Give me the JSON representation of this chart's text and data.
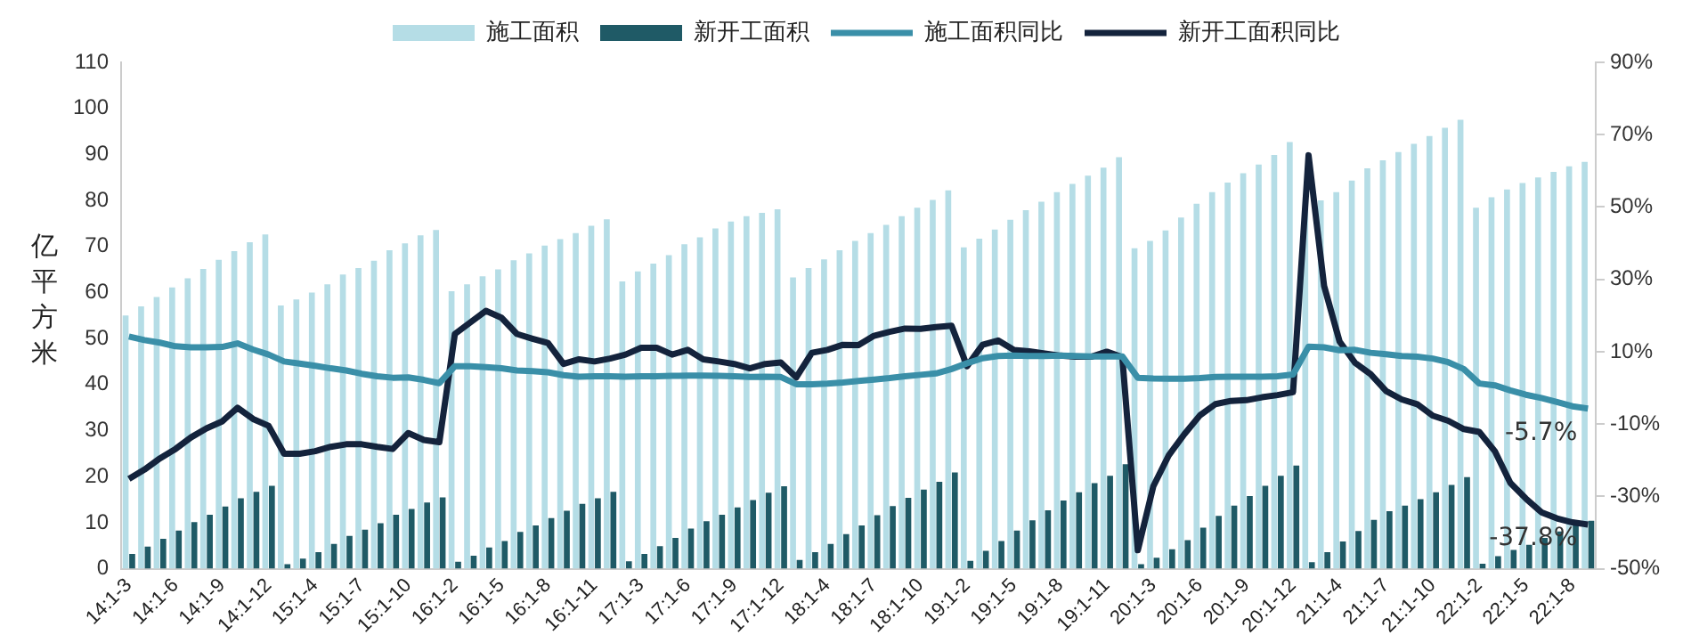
{
  "chart_data": {
    "type": "bar",
    "ylabel": "亿平方米",
    "categories": [
      "14:1-3",
      null,
      null,
      "14:1-6",
      null,
      null,
      "14:1-9",
      null,
      null,
      "14:1-12",
      null,
      null,
      "15:1-4",
      null,
      null,
      "15:1-7",
      null,
      null,
      "15:1-10",
      null,
      null,
      "16:1-2",
      null,
      null,
      "16:1-5",
      null,
      null,
      "16:1-8",
      null,
      null,
      "16:1-11",
      null,
      null,
      "17:1-3",
      null,
      null,
      "17:1-6",
      null,
      null,
      "17:1-9",
      null,
      null,
      "17:1-12",
      null,
      null,
      "18:1-4",
      null,
      null,
      "18:1-7",
      null,
      null,
      "18:1-10",
      null,
      null,
      "19:1-2",
      null,
      null,
      "19:1-5",
      null,
      null,
      "19:1-8",
      null,
      null,
      "19:1-11",
      null,
      null,
      "20:1-3",
      null,
      null,
      "20:1-6",
      null,
      null,
      "20:1-9",
      null,
      null,
      "20:1-12",
      null,
      null,
      "21:1-4",
      null,
      null,
      "21:1-7",
      null,
      null,
      "21:1-10",
      null,
      null,
      "22:1-2",
      null,
      null,
      "22:1-5",
      null,
      null,
      "22:1-8",
      null
    ],
    "series": [
      {
        "name": "施工面积",
        "color": "#b5dde6",
        "values": [
          55.0,
          57.0,
          59.0,
          61.1,
          63.1,
          65.1,
          67.1,
          69.0,
          70.9,
          72.6,
          57.2,
          58.5,
          60.0,
          61.8,
          63.9,
          65.3,
          66.9,
          69.2,
          70.7,
          72.4,
          73.6,
          60.3,
          61.8,
          63.5,
          65.0,
          67.0,
          68.5,
          70.2,
          71.6,
          72.9,
          74.5,
          75.9,
          62.4,
          64.6,
          66.3,
          68.1,
          70.5,
          72.0,
          73.9,
          75.4,
          76.6,
          77.3,
          78.1,
          63.3,
          65.3,
          67.2,
          69.2,
          71.2,
          72.9,
          74.7,
          76.6,
          78.4,
          80.1,
          82.2,
          69.8,
          71.7,
          73.7,
          75.8,
          77.9,
          79.7,
          81.8,
          83.6,
          85.4,
          87.1,
          89.4,
          69.6,
          71.2,
          73.5,
          76.3,
          79.3,
          81.8,
          83.9,
          85.9,
          87.8,
          89.9,
          92.7,
          78.3,
          80.0,
          81.8,
          84.3,
          87.0,
          88.7,
          90.5,
          92.3,
          94.0,
          95.8,
          97.5,
          78.4,
          80.7,
          82.4,
          83.8,
          85.0,
          86.2,
          87.4,
          88.4
        ]
      },
      {
        "name": "新开工面积",
        "color": "#1f5a66",
        "values": [
          3.2,
          4.8,
          6.5,
          8.3,
          10.1,
          11.7,
          13.5,
          15.3,
          16.7,
          18.0,
          1.0,
          2.2,
          3.6,
          5.4,
          7.1,
          8.5,
          9.9,
          11.7,
          13.0,
          14.4,
          15.5,
          1.5,
          2.8,
          4.6,
          6.0,
          8.0,
          9.4,
          11.0,
          12.6,
          14.1,
          15.3,
          16.7,
          1.6,
          3.2,
          4.9,
          6.7,
          8.7,
          10.3,
          11.7,
          13.3,
          14.9,
          16.5,
          17.9,
          1.9,
          3.6,
          5.4,
          7.5,
          9.4,
          11.6,
          13.6,
          15.4,
          17.2,
          18.9,
          20.9,
          1.7,
          3.9,
          6.0,
          8.3,
          10.5,
          12.7,
          14.8,
          16.6,
          18.6,
          20.2,
          22.7,
          1.0,
          2.4,
          4.2,
          6.2,
          8.9,
          11.5,
          13.7,
          15.8,
          18.0,
          20.2,
          22.4,
          1.4,
          3.6,
          5.9,
          8.2,
          10.6,
          12.5,
          13.7,
          15.1,
          16.6,
          18.2,
          19.9,
          1.1,
          2.7,
          4.1,
          5.2,
          6.7,
          8.1,
          9.4,
          10.4
        ]
      },
      {
        "name": "施工面积同比",
        "type": "line",
        "axis": "y2",
        "color": "#3a8fa8",
        "values": [
          14.2,
          13.2,
          12.5,
          11.5,
          11.2,
          11.2,
          11.3,
          12.3,
          10.6,
          9.2,
          7.3,
          6.7,
          6.1,
          5.4,
          4.8,
          3.9,
          3.2,
          2.8,
          2.9,
          2.2,
          1.3,
          6.0,
          6.0,
          5.7,
          5.4,
          4.8,
          4.6,
          4.3,
          3.5,
          3.1,
          3.2,
          3.2,
          3.1,
          3.2,
          3.2,
          3.3,
          3.4,
          3.4,
          3.3,
          3.2,
          3.0,
          3.1,
          3.0,
          1.0,
          1.0,
          1.2,
          1.5,
          1.9,
          2.3,
          2.7,
          3.2,
          3.6,
          4.0,
          5.2,
          6.8,
          8.2,
          8.8,
          8.9,
          8.8,
          8.8,
          8.9,
          8.8,
          8.7,
          8.7,
          8.7,
          2.8,
          2.6,
          2.5,
          2.5,
          2.7,
          3.0,
          3.1,
          3.1,
          3.1,
          3.2,
          3.7,
          11.4,
          11.2,
          10.4,
          10.5,
          9.7,
          9.3,
          8.8,
          8.6,
          8.1,
          7.1,
          5.2,
          1.2,
          0.7,
          -0.7,
          -1.9,
          -2.8,
          -3.9,
          -5.1,
          -5.7
        ],
        "value_labels": [
          null,
          null,
          null,
          null,
          null,
          null,
          null,
          null,
          null,
          null,
          null,
          null,
          null,
          null,
          null,
          null,
          null,
          null,
          null,
          null,
          null,
          null,
          null,
          null,
          null,
          null,
          null,
          null,
          null,
          null,
          null,
          null,
          null,
          null,
          null,
          null,
          null,
          null,
          null,
          null,
          null,
          null,
          null,
          null,
          null,
          null,
          null,
          null,
          null,
          null,
          null,
          null,
          null,
          null,
          null,
          null,
          null,
          null,
          null,
          null,
          null,
          null,
          null,
          null,
          null,
          null,
          null,
          null,
          null,
          null,
          null,
          null,
          null,
          null,
          null,
          null,
          null,
          null,
          null,
          null,
          null,
          null,
          null,
          null,
          null,
          null,
          null,
          null,
          null,
          null,
          null,
          null,
          null,
          null,
          "-5.7%"
        ]
      },
      {
        "name": "新开工面积同比",
        "type": "line",
        "axis": "y2",
        "color": "#14233c",
        "values": [
          -25.2,
          -22.6,
          -19.5,
          -16.9,
          -13.7,
          -11.2,
          -9.3,
          -5.5,
          -8.6,
          -10.5,
          -18.2,
          -18.2,
          -17.5,
          -16.3,
          -15.6,
          -15.6,
          -16.3,
          -16.9,
          -12.5,
          -14.4,
          -15.0,
          14.9,
          18.1,
          21.3,
          19.4,
          14.9,
          13.6,
          12.4,
          6.6,
          7.9,
          7.3,
          8.1,
          9.2,
          11.1,
          11.1,
          9.2,
          10.5,
          7.9,
          7.3,
          6.6,
          5.4,
          6.6,
          7.0,
          2.9,
          9.7,
          10.5,
          11.9,
          11.8,
          14.4,
          15.5,
          16.4,
          16.3,
          16.8,
          17.2,
          6.0,
          11.9,
          13.1,
          10.5,
          10.1,
          9.5,
          8.9,
          8.6,
          8.6,
          10.0,
          8.5,
          -44.9,
          -27.2,
          -18.6,
          -12.8,
          -7.6,
          -4.5,
          -3.6,
          -3.4,
          -2.6,
          -2.0,
          -1.2,
          64.3,
          28.2,
          12.8,
          6.9,
          3.8,
          -0.9,
          -3.2,
          -4.5,
          -7.7,
          -9.1,
          -11.4,
          -12.2,
          -17.5,
          -26.3,
          -30.6,
          -34.4,
          -36.1,
          -37.2,
          -37.8
        ],
        "value_labels": [
          null,
          null,
          null,
          null,
          null,
          null,
          null,
          null,
          null,
          null,
          null,
          null,
          null,
          null,
          null,
          null,
          null,
          null,
          null,
          null,
          null,
          null,
          null,
          null,
          null,
          null,
          null,
          null,
          null,
          null,
          null,
          null,
          null,
          null,
          null,
          null,
          null,
          null,
          null,
          null,
          null,
          null,
          null,
          null,
          null,
          null,
          null,
          null,
          null,
          null,
          null,
          null,
          null,
          null,
          null,
          null,
          null,
          null,
          null,
          null,
          null,
          null,
          null,
          null,
          null,
          null,
          null,
          null,
          null,
          null,
          null,
          null,
          null,
          null,
          null,
          null,
          null,
          null,
          null,
          null,
          null,
          null,
          null,
          null,
          null,
          null,
          null,
          null,
          null,
          null,
          null,
          null,
          null,
          null,
          "-37.8%"
        ]
      }
    ],
    "ylim": [
      0,
      110
    ],
    "yticks": [
      0,
      10,
      20,
      30,
      40,
      50,
      60,
      70,
      80,
      90,
      100,
      110
    ],
    "y2lim": [
      -50,
      90
    ],
    "y2ticks": [
      {
        "value": -50,
        "label": "-50%"
      },
      {
        "value": -30,
        "label": "-30%"
      },
      {
        "value": -10,
        "label": "-10%"
      },
      {
        "value": 10,
        "label": "10%"
      },
      {
        "value": 30,
        "label": "30%"
      },
      {
        "value": 50,
        "label": "50%"
      },
      {
        "value": 70,
        "label": "70%"
      },
      {
        "value": 90,
        "label": "90%"
      }
    ],
    "grid": false,
    "legend": "top",
    "marker": "none",
    "line_style": "solid"
  }
}
